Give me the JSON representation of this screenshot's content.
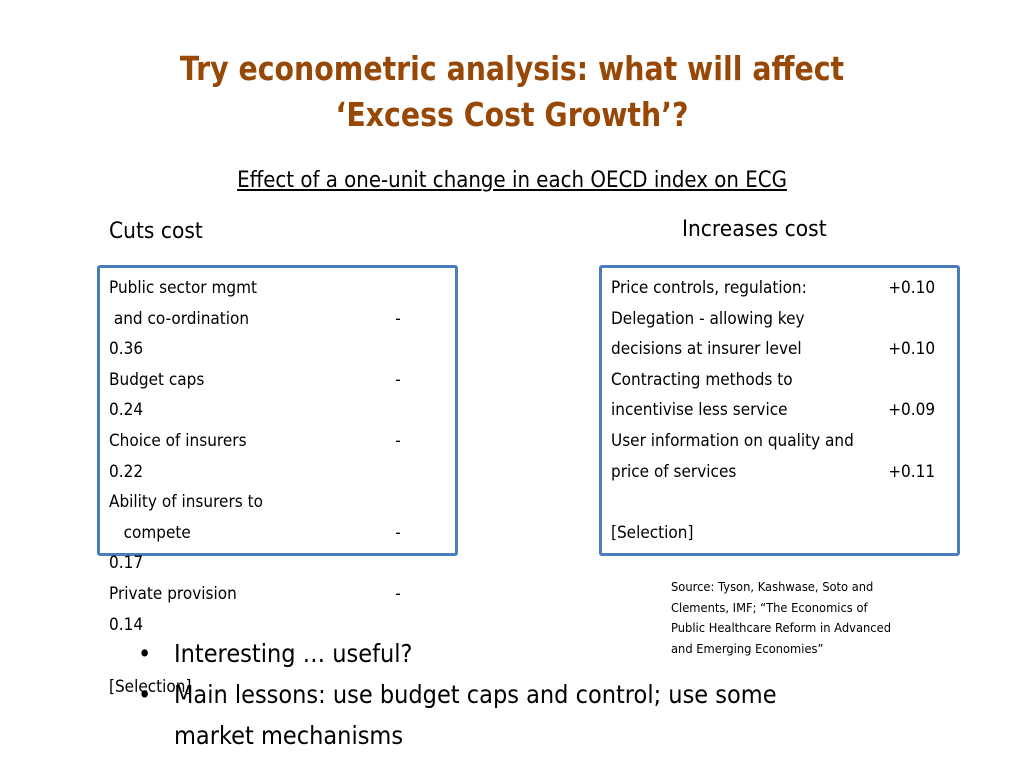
{
  "slide": {
    "title_line1": "Try econometric analysis: what will affect",
    "title_line2": "‘Excess Cost Growth’?",
    "subtitle": "Effect of a one-unit change in each OECD index on ECG",
    "title_color": "#984806",
    "box_border_color": "#4a7ebb"
  },
  "cuts": {
    "heading": "Cuts cost",
    "lines": [
      {
        "text": "Public sector mgmt",
        "value": ""
      },
      {
        "text": " and co-ordination",
        "value": "-"
      },
      {
        "text": "0.36",
        "value": ""
      },
      {
        "text": "Budget caps",
        "value": "-"
      },
      {
        "text": "0.24",
        "value": ""
      },
      {
        "text": "Choice of insurers",
        "value": "-"
      },
      {
        "text": "0.22",
        "value": ""
      },
      {
        "text": "Ability of insurers to",
        "value": ""
      },
      {
        "text": "   compete",
        "value": "-"
      },
      {
        "text": "0.17",
        "value": ""
      },
      {
        "text": "Private provision",
        "value": "-"
      },
      {
        "text": "0.14",
        "value": ""
      }
    ],
    "selection": "[Selection]"
  },
  "increases": {
    "heading": "Increases cost",
    "lines": [
      {
        "text": "Price controls, regulation:",
        "value": "+0.10"
      },
      {
        "text": "Delegation - allowing key",
        "value": ""
      },
      {
        "text": "decisions at insurer level",
        "value": "+0.10"
      },
      {
        "text": "Contracting methods to",
        "value": ""
      },
      {
        "text": "incentivise less service",
        "value": "+0.09"
      },
      {
        "text": "User information on quality and",
        "value": ""
      },
      {
        "text": "price of services",
        "value": "+0.11"
      },
      {
        "text": "",
        "value": ""
      },
      {
        "text": "[Selection]",
        "value": ""
      }
    ]
  },
  "source": {
    "lines": [
      "Source:  Tyson, Kashwase, Soto and",
      "Clements, IMF;  “The Economics of",
      "Public Healthcare Reform in Advanced",
      "and Emerging Economies”"
    ]
  },
  "bullets": {
    "marker": "•",
    "items": [
      {
        "lines": [
          "Interesting … useful?"
        ]
      },
      {
        "lines": [
          "Main lessons:  use budget caps and control; use some",
          "market mechanisms"
        ]
      }
    ]
  }
}
